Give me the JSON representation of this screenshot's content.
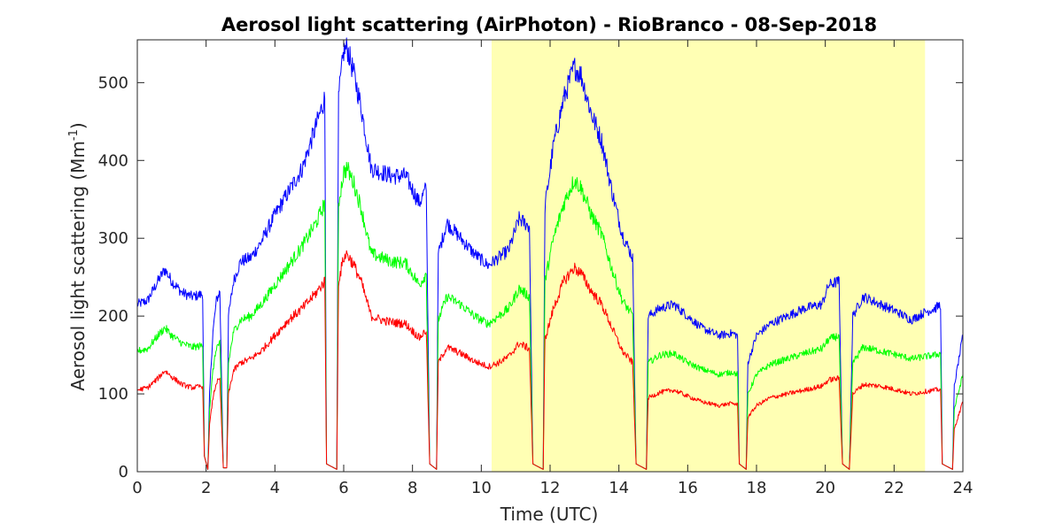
{
  "chart_data": {
    "type": "line",
    "title": "Aerosol light scattering (AirPhoton) - RioBranco - 08-Sep-2018",
    "xlabel": "Time (UTC)",
    "ylabel": {
      "main": "Aerosol light scattering (Mm",
      "superscript": "-1",
      "close": ")"
    },
    "xlim": [
      0,
      24
    ],
    "ylim": [
      0,
      555
    ],
    "xticks": [
      0,
      2,
      4,
      6,
      8,
      10,
      12,
      14,
      16,
      18,
      20,
      22,
      24
    ],
    "yticks": [
      0,
      100,
      200,
      300,
      400,
      500
    ],
    "daylight_shading": {
      "start": 10.3,
      "end": 22.9,
      "color": "#ffffb4"
    },
    "grid": false,
    "series": [
      {
        "color": "#0000ff",
        "points": [
          [
            0,
            215
          ],
          [
            0.3,
            220
          ],
          [
            0.6,
            245
          ],
          [
            0.8,
            260
          ],
          [
            1.0,
            245
          ],
          [
            1.3,
            230
          ],
          [
            1.6,
            225
          ],
          [
            1.9,
            228
          ],
          [
            1.95,
            20
          ],
          [
            2.05,
            3
          ],
          [
            2.1,
            100
          ],
          [
            2.2,
            180
          ],
          [
            2.3,
            220
          ],
          [
            2.4,
            232
          ],
          [
            2.5,
            5
          ],
          [
            2.6,
            5
          ],
          [
            2.65,
            200
          ],
          [
            2.8,
            245
          ],
          [
            3.0,
            270
          ],
          [
            3.3,
            275
          ],
          [
            3.6,
            295
          ],
          [
            4.0,
            330
          ],
          [
            4.4,
            360
          ],
          [
            4.8,
            390
          ],
          [
            5.2,
            445
          ],
          [
            5.45,
            480
          ],
          [
            5.5,
            10
          ],
          [
            5.8,
            3
          ],
          [
            5.85,
            480
          ],
          [
            6.0,
            540
          ],
          [
            6.1,
            545
          ],
          [
            6.3,
            510
          ],
          [
            6.5,
            470
          ],
          [
            6.8,
            390
          ],
          [
            7.1,
            385
          ],
          [
            7.4,
            380
          ],
          [
            7.8,
            380
          ],
          [
            8.2,
            345
          ],
          [
            8.4,
            365
          ],
          [
            8.5,
            10
          ],
          [
            8.7,
            3
          ],
          [
            8.75,
            280
          ],
          [
            9.0,
            320
          ],
          [
            9.4,
            300
          ],
          [
            9.8,
            280
          ],
          [
            10.2,
            265
          ],
          [
            10.5,
            275
          ],
          [
            10.8,
            285
          ],
          [
            11.1,
            325
          ],
          [
            11.4,
            315
          ],
          [
            11.5,
            10
          ],
          [
            11.8,
            3
          ],
          [
            11.85,
            340
          ],
          [
            12.1,
            420
          ],
          [
            12.4,
            480
          ],
          [
            12.7,
            520
          ],
          [
            12.9,
            510
          ],
          [
            13.2,
            460
          ],
          [
            13.5,
            425
          ],
          [
            13.8,
            360
          ],
          [
            14.1,
            305
          ],
          [
            14.4,
            275
          ],
          [
            14.5,
            10
          ],
          [
            14.8,
            3
          ],
          [
            14.85,
            200
          ],
          [
            15.2,
            210
          ],
          [
            15.6,
            215
          ],
          [
            16.0,
            200
          ],
          [
            16.4,
            185
          ],
          [
            16.9,
            175
          ],
          [
            17.3,
            178
          ],
          [
            17.45,
            175
          ],
          [
            17.5,
            10
          ],
          [
            17.7,
            3
          ],
          [
            17.75,
            140
          ],
          [
            18.0,
            175
          ],
          [
            18.4,
            190
          ],
          [
            18.9,
            200
          ],
          [
            19.4,
            210
          ],
          [
            19.9,
            215
          ],
          [
            20.1,
            240
          ],
          [
            20.4,
            245
          ],
          [
            20.5,
            10
          ],
          [
            20.7,
            3
          ],
          [
            20.8,
            200
          ],
          [
            21.1,
            225
          ],
          [
            21.6,
            215
          ],
          [
            22.1,
            205
          ],
          [
            22.5,
            195
          ],
          [
            22.9,
            205
          ],
          [
            23.2,
            210
          ],
          [
            23.35,
            215
          ],
          [
            23.4,
            10
          ],
          [
            23.7,
            3
          ],
          [
            23.75,
            110
          ],
          [
            24.0,
            175
          ]
        ]
      },
      {
        "color": "#00ff00",
        "points": [
          [
            0,
            155
          ],
          [
            0.3,
            158
          ],
          [
            0.6,
            175
          ],
          [
            0.8,
            185
          ],
          [
            1.0,
            175
          ],
          [
            1.3,
            165
          ],
          [
            1.6,
            160
          ],
          [
            1.9,
            162
          ],
          [
            1.95,
            20
          ],
          [
            2.05,
            3
          ],
          [
            2.1,
            80
          ],
          [
            2.2,
            130
          ],
          [
            2.3,
            160
          ],
          [
            2.4,
            165
          ],
          [
            2.5,
            5
          ],
          [
            2.6,
            5
          ],
          [
            2.65,
            140
          ],
          [
            2.8,
            180
          ],
          [
            3.0,
            195
          ],
          [
            3.3,
            200
          ],
          [
            3.6,
            215
          ],
          [
            4.0,
            240
          ],
          [
            4.4,
            265
          ],
          [
            4.8,
            290
          ],
          [
            5.2,
            320
          ],
          [
            5.45,
            345
          ],
          [
            5.5,
            10
          ],
          [
            5.8,
            3
          ],
          [
            5.85,
            345
          ],
          [
            6.0,
            385
          ],
          [
            6.1,
            390
          ],
          [
            6.3,
            370
          ],
          [
            6.5,
            340
          ],
          [
            6.8,
            280
          ],
          [
            7.1,
            275
          ],
          [
            7.4,
            270
          ],
          [
            7.8,
            268
          ],
          [
            8.2,
            240
          ],
          [
            8.4,
            255
          ],
          [
            8.5,
            10
          ],
          [
            8.7,
            3
          ],
          [
            8.75,
            195
          ],
          [
            9.0,
            225
          ],
          [
            9.4,
            215
          ],
          [
            9.8,
            200
          ],
          [
            10.2,
            190
          ],
          [
            10.5,
            200
          ],
          [
            10.8,
            210
          ],
          [
            11.1,
            235
          ],
          [
            11.4,
            225
          ],
          [
            11.5,
            10
          ],
          [
            11.8,
            3
          ],
          [
            11.85,
            245
          ],
          [
            12.1,
            300
          ],
          [
            12.4,
            345
          ],
          [
            12.7,
            375
          ],
          [
            12.9,
            365
          ],
          [
            13.2,
            330
          ],
          [
            13.5,
            305
          ],
          [
            13.8,
            260
          ],
          [
            14.1,
            220
          ],
          [
            14.4,
            200
          ],
          [
            14.5,
            10
          ],
          [
            14.8,
            3
          ],
          [
            14.85,
            140
          ],
          [
            15.2,
            150
          ],
          [
            15.6,
            152
          ],
          [
            16.0,
            140
          ],
          [
            16.4,
            132
          ],
          [
            16.9,
            125
          ],
          [
            17.3,
            128
          ],
          [
            17.45,
            125
          ],
          [
            17.5,
            10
          ],
          [
            17.7,
            3
          ],
          [
            17.75,
            100
          ],
          [
            18.0,
            125
          ],
          [
            18.4,
            138
          ],
          [
            18.9,
            145
          ],
          [
            19.4,
            152
          ],
          [
            19.9,
            158
          ],
          [
            20.1,
            170
          ],
          [
            20.4,
            175
          ],
          [
            20.5,
            10
          ],
          [
            20.7,
            3
          ],
          [
            20.8,
            140
          ],
          [
            21.1,
            160
          ],
          [
            21.6,
            155
          ],
          [
            22.1,
            150
          ],
          [
            22.5,
            145
          ],
          [
            22.9,
            148
          ],
          [
            23.2,
            150
          ],
          [
            23.35,
            152
          ],
          [
            23.4,
            10
          ],
          [
            23.7,
            3
          ],
          [
            23.75,
            80
          ],
          [
            24.0,
            125
          ]
        ]
      },
      {
        "color": "#ff0000",
        "points": [
          [
            0,
            105
          ],
          [
            0.3,
            108
          ],
          [
            0.6,
            120
          ],
          [
            0.8,
            130
          ],
          [
            1.0,
            122
          ],
          [
            1.3,
            112
          ],
          [
            1.6,
            108
          ],
          [
            1.9,
            110
          ],
          [
            1.95,
            20
          ],
          [
            2.05,
            3
          ],
          [
            2.1,
            60
          ],
          [
            2.2,
            95
          ],
          [
            2.3,
            115
          ],
          [
            2.4,
            118
          ],
          [
            2.5,
            5
          ],
          [
            2.6,
            5
          ],
          [
            2.65,
            100
          ],
          [
            2.8,
            130
          ],
          [
            3.0,
            140
          ],
          [
            3.3,
            145
          ],
          [
            3.6,
            155
          ],
          [
            4.0,
            175
          ],
          [
            4.4,
            195
          ],
          [
            4.8,
            210
          ],
          [
            5.2,
            230
          ],
          [
            5.45,
            245
          ],
          [
            5.5,
            10
          ],
          [
            5.8,
            3
          ],
          [
            5.85,
            245
          ],
          [
            6.0,
            275
          ],
          [
            6.1,
            280
          ],
          [
            6.3,
            265
          ],
          [
            6.5,
            245
          ],
          [
            6.8,
            200
          ],
          [
            7.1,
            195
          ],
          [
            7.4,
            192
          ],
          [
            7.8,
            190
          ],
          [
            8.2,
            172
          ],
          [
            8.4,
            182
          ],
          [
            8.5,
            10
          ],
          [
            8.7,
            3
          ],
          [
            8.75,
            140
          ],
          [
            9.0,
            160
          ],
          [
            9.4,
            152
          ],
          [
            9.8,
            142
          ],
          [
            10.2,
            135
          ],
          [
            10.5,
            140
          ],
          [
            10.8,
            148
          ],
          [
            11.1,
            165
          ],
          [
            11.4,
            158
          ],
          [
            11.5,
            10
          ],
          [
            11.8,
            3
          ],
          [
            11.85,
            170
          ],
          [
            12.1,
            210
          ],
          [
            12.4,
            245
          ],
          [
            12.7,
            262
          ],
          [
            12.9,
            255
          ],
          [
            13.2,
            232
          ],
          [
            13.5,
            215
          ],
          [
            13.8,
            185
          ],
          [
            14.1,
            155
          ],
          [
            14.4,
            140
          ],
          [
            14.5,
            10
          ],
          [
            14.8,
            3
          ],
          [
            14.85,
            95
          ],
          [
            15.2,
            102
          ],
          [
            15.6,
            105
          ],
          [
            16.0,
            97
          ],
          [
            16.4,
            90
          ],
          [
            16.9,
            85
          ],
          [
            17.3,
            88
          ],
          [
            17.45,
            86
          ],
          [
            17.5,
            10
          ],
          [
            17.7,
            3
          ],
          [
            17.75,
            70
          ],
          [
            18.0,
            85
          ],
          [
            18.4,
            95
          ],
          [
            18.9,
            100
          ],
          [
            19.4,
            105
          ],
          [
            19.9,
            110
          ],
          [
            20.1,
            118
          ],
          [
            20.4,
            120
          ],
          [
            20.5,
            10
          ],
          [
            20.7,
            3
          ],
          [
            20.8,
            100
          ],
          [
            21.1,
            112
          ],
          [
            21.6,
            110
          ],
          [
            22.1,
            105
          ],
          [
            22.5,
            100
          ],
          [
            22.9,
            103
          ],
          [
            23.2,
            105
          ],
          [
            23.35,
            106
          ],
          [
            23.4,
            10
          ],
          [
            23.7,
            3
          ],
          [
            23.75,
            55
          ],
          [
            24.0,
            90
          ]
        ]
      }
    ]
  }
}
